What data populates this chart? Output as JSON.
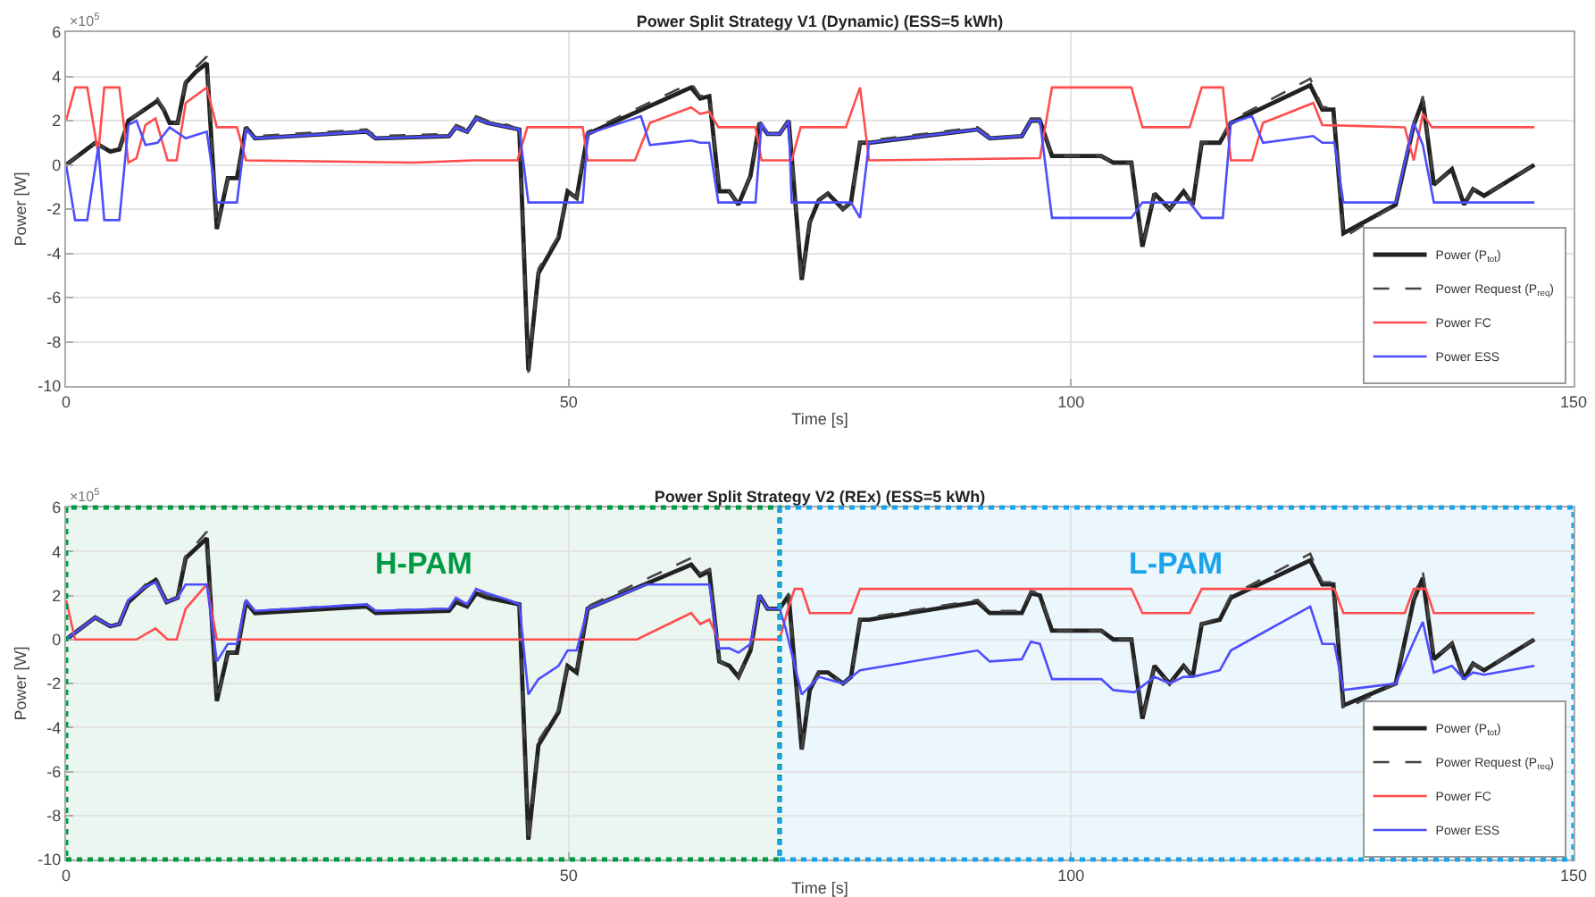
{
  "chart_data": [
    {
      "type": "line",
      "title": "Power Split Strategy V1 (Dynamic) (ESS=5 kWh)",
      "xlabel": "Time [s]",
      "ylabel": "Power [W]",
      "annotations": [
        "×10$^{5}$"
      ],
      "xlim": [
        0,
        150
      ],
      "xticks": [
        0,
        50,
        100,
        150
      ],
      "ylim": [
        -10,
        6
      ],
      "yticks": [
        -10,
        -8,
        -6,
        -4,
        -2,
        0,
        2,
        4,
        6
      ],
      "grid": true,
      "legend": "bottom right",
      "series": [
        {
          "name": "Power (P$_{tot}$)",
          "color": "#222222",
          "line_style": "solid",
          "x": [
            0,
            2.9,
            4.4,
            5.3,
            6.2,
            9.1,
            9.7,
            10.3,
            11.1,
            11.9,
            12.9,
            14.0,
            15.0,
            16.1,
            17.0,
            17.9,
            18.8,
            29.9,
            30.8,
            38.1,
            38.8,
            39.9,
            40.8,
            41.9,
            44.0,
            45.1,
            46.0,
            47.0,
            49.0,
            49.9,
            50.8,
            51.9,
            62.2,
            63.1,
            64.0,
            65.0,
            66.0,
            66.9,
            68.1,
            69.0,
            69.8,
            71.0,
            71.9,
            73.2,
            74.0,
            74.9,
            75.8,
            77.3,
            78.1,
            79.0,
            79.9,
            90.7,
            91.9,
            95.1,
            96.0,
            96.9,
            98.1,
            103.0,
            104.2,
            106.0,
            107.1,
            108.3,
            109.8,
            111.2,
            112.1,
            113.0,
            114.8,
            115.9,
            123.8,
            125.0,
            126.1,
            127.1,
            132.3,
            134.1,
            135.0,
            136.1,
            137.9,
            139.1,
            140.0,
            141.1,
            146.1
          ],
          "values": [
            0,
            1.0,
            0.6,
            0.7,
            2.0,
            2.9,
            2.5,
            1.9,
            1.9,
            3.7,
            4.2,
            4.6,
            -2.9,
            -0.6,
            -0.6,
            1.7,
            1.2,
            1.5,
            1.2,
            1.3,
            1.7,
            1.5,
            2.1,
            1.9,
            1.7,
            1.6,
            -9.3,
            -4.9,
            -3.3,
            -1.2,
            -1.5,
            1.4,
            3.5,
            3.0,
            3.1,
            -1.2,
            -1.2,
            -1.8,
            -0.5,
            1.9,
            1.4,
            1.4,
            2.0,
            -5.2,
            -2.6,
            -1.6,
            -1.3,
            -2.0,
            -1.7,
            1.0,
            1.0,
            1.6,
            1.2,
            1.3,
            2.0,
            2.0,
            0.4,
            0.4,
            0.1,
            0.1,
            -3.7,
            -1.3,
            -2.0,
            -1.2,
            -1.8,
            1.0,
            1.0,
            1.9,
            3.6,
            2.5,
            2.5,
            -3.1,
            -1.8,
            1.8,
            2.9,
            -0.9,
            -0.2,
            -1.8,
            -1.1,
            -1.4,
            0.0
          ]
        },
        {
          "name": "Power Request (P$_{req}$)",
          "color": "#444444",
          "line_style": "dashed",
          "x": [
            0,
            2.9,
            4.4,
            5.3,
            6.2,
            9.1,
            9.7,
            10.3,
            11.1,
            11.9,
            12.9,
            14.0,
            15.0,
            16.1,
            17.0,
            17.9,
            18.8,
            29.9,
            30.8,
            38.1,
            38.8,
            39.9,
            40.8,
            41.9,
            44.0,
            45.1,
            46.0,
            47.0,
            49.0,
            49.9,
            50.8,
            51.9,
            62.2,
            63.1,
            64.0,
            65.0,
            66.0,
            66.9,
            68.1,
            69.0,
            69.8,
            71.0,
            71.9,
            73.2,
            74.0,
            74.9,
            75.8,
            77.3,
            78.1,
            79.0,
            79.9,
            90.7,
            91.9,
            95.1,
            96.0,
            96.9,
            98.1,
            103.0,
            104.2,
            106.0,
            107.1,
            108.3,
            109.8,
            111.2,
            112.1,
            113.0,
            114.8,
            115.9,
            123.8,
            125.0,
            126.1,
            127.1,
            132.3,
            134.1,
            135.0,
            136.1,
            137.9,
            139.1,
            140.0,
            141.1,
            146.1
          ],
          "values": [
            0,
            1.0,
            0.6,
            0.7,
            2.0,
            3.0,
            2.5,
            1.9,
            1.9,
            3.8,
            4.4,
            4.9,
            -2.9,
            -0.6,
            -0.6,
            1.7,
            1.3,
            1.6,
            1.3,
            1.4,
            1.8,
            1.6,
            2.2,
            2.0,
            1.8,
            1.6,
            -9.4,
            -4.7,
            -3.2,
            -1.2,
            -1.5,
            1.5,
            3.7,
            3.1,
            3.2,
            -1.2,
            -1.2,
            -1.8,
            -0.5,
            1.9,
            1.4,
            1.4,
            2.1,
            -5.2,
            -2.6,
            -1.6,
            -1.3,
            -2.0,
            -1.7,
            1.0,
            1.1,
            1.7,
            1.3,
            1.3,
            2.1,
            2.1,
            0.4,
            0.4,
            0.1,
            0.1,
            -3.7,
            -1.3,
            -2.0,
            -1.2,
            -1.8,
            1.0,
            1.1,
            2.0,
            3.9,
            2.6,
            2.6,
            -3.3,
            -1.8,
            1.9,
            3.1,
            -0.9,
            -0.2,
            -1.8,
            -1.1,
            -1.4,
            0.0
          ]
        },
        {
          "name": "Power FC",
          "color": "#ff4d4d",
          "line_style": "solid",
          "x": [
            0,
            0.9,
            2.1,
            3.2,
            3.8,
            5.3,
            6.2,
            7.0,
            7.9,
            8.9,
            10.1,
            11.0,
            11.9,
            14.0,
            15.0,
            17.0,
            17.9,
            34.6,
            40.5,
            44.9,
            45.9,
            51.4,
            51.9,
            56.6,
            58.1,
            62.2,
            63.1,
            64.0,
            64.9,
            68.6,
            69.2,
            72.2,
            73.1,
            77.6,
            79.0,
            79.9,
            96.9,
            98.1,
            106.0,
            107.1,
            111.8,
            113.0,
            115.1,
            115.9,
            118.0,
            119.1,
            124.1,
            125.0,
            133.2,
            134.1,
            135.0,
            135.9,
            146.1
          ],
          "values": [
            2.0,
            3.5,
            3.5,
            0.5,
            3.5,
            3.5,
            0.1,
            0.3,
            1.8,
            2.1,
            0.2,
            0.2,
            2.8,
            3.5,
            1.7,
            1.7,
            0.2,
            0.1,
            0.2,
            0.2,
            1.7,
            1.7,
            0.2,
            0.2,
            1.9,
            2.6,
            2.3,
            2.4,
            1.7,
            1.7,
            0.2,
            0.2,
            1.7,
            1.7,
            3.5,
            0.2,
            0.3,
            3.5,
            3.5,
            1.7,
            1.7,
            3.5,
            3.5,
            0.2,
            0.2,
            1.9,
            2.8,
            1.8,
            1.7,
            0.2,
            2.3,
            1.7,
            1.7
          ]
        },
        {
          "name": "Power ESS",
          "color": "#4d4dff",
          "line_style": "solid",
          "x": [
            0,
            0.9,
            2.1,
            3.2,
            3.8,
            5.3,
            6.2,
            7.0,
            7.9,
            9.1,
            10.3,
            11.9,
            14.0,
            15.0,
            17.0,
            17.9,
            18.8,
            29.9,
            30.8,
            38.1,
            38.8,
            39.9,
            40.8,
            41.9,
            44.0,
            45.1,
            46.0,
            51.4,
            51.9,
            57.2,
            58.1,
            62.2,
            63.1,
            64.0,
            64.9,
            68.6,
            69.2,
            69.8,
            71.0,
            71.9,
            72.2,
            78.1,
            79.0,
            79.9,
            90.7,
            91.9,
            95.1,
            96.0,
            96.9,
            98.1,
            106.0,
            107.1,
            111.8,
            113.0,
            115.1,
            115.9,
            118.0,
            119.1,
            124.1,
            125.0,
            126.2,
            127.1,
            132.3,
            134.1,
            135.0,
            136.1,
            146.1
          ],
          "values": [
            0,
            -2.5,
            -2.5,
            0.8,
            -2.5,
            -2.5,
            1.8,
            2.0,
            0.9,
            1.0,
            1.7,
            1.2,
            1.5,
            -1.7,
            -1.7,
            1.6,
            1.2,
            1.5,
            1.2,
            1.3,
            1.7,
            1.5,
            2.1,
            1.9,
            1.7,
            1.6,
            -1.7,
            -1.7,
            1.4,
            2.2,
            0.9,
            1.1,
            1.0,
            1.0,
            -1.7,
            -1.7,
            1.9,
            1.4,
            1.4,
            2.0,
            -1.7,
            -1.7,
            -2.4,
            1.0,
            1.6,
            1.2,
            1.3,
            2.0,
            2.0,
            -2.4,
            -2.4,
            -1.7,
            -1.7,
            -2.4,
            -2.4,
            1.9,
            2.2,
            1.0,
            1.3,
            1.0,
            1.0,
            -1.7,
            -1.7,
            1.9,
            0.9,
            -1.7,
            -1.7
          ]
        }
      ]
    },
    {
      "type": "line",
      "title": "Power Split Strategy V2 (REx) (ESS=5 kWh)",
      "xlabel": "Time [s]",
      "ylabel": "Power [W]",
      "annotations": [
        "×10$^{5}$"
      ],
      "xlim": [
        0,
        150
      ],
      "xticks": [
        0,
        50,
        100,
        150
      ],
      "ylim": [
        -10,
        6
      ],
      "yticks": [
        -10,
        -8,
        -6,
        -4,
        -2,
        0,
        2,
        4,
        6
      ],
      "grid": true,
      "legend": "bottom right",
      "bands": [
        {
          "axis": "x",
          "from": 0,
          "to": 71,
          "label": "H-PAM",
          "color": "#009944"
        },
        {
          "axis": "x",
          "from": 71,
          "to": 150,
          "label": "L-PAM",
          "color": "#1aa3e8"
        }
      ],
      "series": [
        {
          "name": "Power (P$_{tot}$)",
          "color": "#222222",
          "line_style": "solid",
          "x": [
            0,
            2.9,
            4.4,
            5.3,
            6.2,
            7.9,
            8.9,
            10.0,
            11.1,
            11.9,
            14.0,
            15.0,
            16.1,
            17.0,
            17.9,
            18.8,
            29.9,
            30.8,
            38.1,
            38.8,
            39.9,
            40.8,
            41.9,
            44.0,
            45.1,
            46.0,
            47.0,
            49.0,
            49.9,
            50.8,
            51.9,
            62.2,
            63.1,
            64.0,
            65.0,
            66.0,
            66.9,
            68.1,
            69.0,
            69.8,
            71.0,
            71.9,
            73.2,
            74.0,
            74.9,
            75.8,
            77.3,
            78.1,
            79.0,
            79.9,
            90.7,
            91.9,
            95.1,
            96.0,
            96.9,
            98.1,
            103.0,
            104.2,
            106.0,
            107.1,
            108.3,
            109.8,
            111.2,
            112.1,
            113.0,
            114.8,
            115.9,
            123.8,
            125.0,
            126.1,
            127.1,
            132.3,
            134.1,
            135.0,
            136.1,
            137.9,
            139.1,
            140.0,
            141.1,
            146.1
          ],
          "values": [
            0,
            1.0,
            0.6,
            0.7,
            1.7,
            2.4,
            2.7,
            1.7,
            1.9,
            3.7,
            4.6,
            -2.8,
            -0.6,
            -0.6,
            1.7,
            1.2,
            1.5,
            1.2,
            1.3,
            1.7,
            1.5,
            2.1,
            1.9,
            1.7,
            1.6,
            -9.1,
            -4.8,
            -3.3,
            -1.2,
            -1.5,
            1.4,
            3.4,
            2.9,
            3.1,
            -1.0,
            -1.2,
            -1.7,
            -0.5,
            2.0,
            1.4,
            1.4,
            2.0,
            -5.0,
            -2.3,
            -1.5,
            -1.5,
            -2.0,
            -1.7,
            0.9,
            0.9,
            1.7,
            1.2,
            1.2,
            2.1,
            2.0,
            0.4,
            0.4,
            0.0,
            0.0,
            -3.6,
            -1.2,
            -2.0,
            -1.2,
            -1.7,
            0.7,
            0.9,
            1.9,
            3.6,
            2.5,
            2.5,
            -3.0,
            -2.0,
            1.8,
            2.8,
            -0.9,
            -0.2,
            -1.8,
            -1.1,
            -1.4,
            0.0
          ]
        },
        {
          "name": "Power Request (P$_{req}$)",
          "color": "#444444",
          "line_style": "dashed",
          "x": [
            0,
            2.9,
            4.4,
            5.3,
            6.2,
            7.9,
            8.9,
            10.0,
            11.1,
            11.9,
            14.0,
            15.0,
            16.1,
            17.0,
            17.9,
            18.8,
            29.9,
            30.8,
            38.1,
            38.8,
            39.9,
            40.8,
            41.9,
            44.0,
            45.1,
            46.0,
            47.0,
            49.0,
            49.9,
            50.8,
            51.9,
            62.2,
            63.1,
            64.0,
            65.0,
            66.0,
            66.9,
            68.1,
            69.0,
            69.8,
            71.0,
            71.9,
            73.2,
            74.0,
            74.9,
            75.8,
            77.3,
            78.1,
            79.0,
            79.9,
            90.7,
            91.9,
            95.1,
            96.0,
            96.9,
            98.1,
            103.0,
            104.2,
            106.0,
            107.1,
            108.3,
            109.8,
            111.2,
            112.1,
            113.0,
            114.8,
            115.9,
            123.8,
            125.0,
            126.1,
            127.1,
            132.3,
            134.1,
            135.0,
            136.1,
            137.9,
            139.1,
            140.0,
            141.1,
            146.1
          ],
          "values": [
            0,
            1.0,
            0.6,
            0.7,
            1.7,
            2.5,
            2.9,
            1.7,
            1.9,
            3.8,
            4.9,
            -2.8,
            -0.6,
            -0.6,
            1.7,
            1.3,
            1.6,
            1.3,
            1.4,
            1.8,
            1.6,
            2.2,
            2.0,
            1.8,
            1.6,
            -9.3,
            -4.6,
            -3.2,
            -1.2,
            -1.5,
            1.5,
            3.7,
            3.0,
            3.2,
            -1.0,
            -1.2,
            -1.7,
            -0.5,
            2.0,
            1.4,
            1.4,
            2.1,
            -5.0,
            -2.3,
            -1.5,
            -1.5,
            -2.0,
            -1.7,
            0.9,
            1.0,
            1.8,
            1.3,
            1.3,
            2.2,
            2.1,
            0.4,
            0.4,
            0.0,
            0.0,
            -3.6,
            -1.2,
            -2.0,
            -1.2,
            -1.7,
            0.7,
            1.0,
            2.0,
            3.9,
            2.6,
            2.6,
            -3.2,
            -2.0,
            1.9,
            3.1,
            -0.9,
            -0.2,
            -1.8,
            -1.1,
            -1.4,
            0.0
          ]
        },
        {
          "name": "Power FC",
          "color": "#ff4d4d",
          "line_style": "solid",
          "x": [
            0,
            0.9,
            7.0,
            8.9,
            10.1,
            11.0,
            11.9,
            14.0,
            15.0,
            56.8,
            62.2,
            63.1,
            64.0,
            64.9,
            71.0,
            71.9,
            72.5,
            73.2,
            74.0,
            78.1,
            79.0,
            106.0,
            107.1,
            111.8,
            113.0,
            126.2,
            127.1,
            133.2,
            134.1,
            135.3,
            136.1,
            146.1
          ],
          "values": [
            1.8,
            0,
            0,
            0.5,
            0,
            0,
            1.4,
            2.5,
            0,
            0,
            1.2,
            0.7,
            0.9,
            0,
            0,
            1.5,
            2.3,
            2.3,
            1.2,
            1.2,
            2.3,
            2.3,
            1.2,
            1.2,
            2.3,
            2.3,
            1.2,
            1.2,
            2.3,
            2.3,
            1.2,
            1.2
          ]
        },
        {
          "name": "Power ESS",
          "color": "#4d4dff",
          "line_style": "solid",
          "x": [
            0,
            2.9,
            4.4,
            5.3,
            6.2,
            7.9,
            8.9,
            10.0,
            11.1,
            11.9,
            14.0,
            15.0,
            16.1,
            17.0,
            17.9,
            18.8,
            29.9,
            30.8,
            38.1,
            38.8,
            39.9,
            40.8,
            41.9,
            44.0,
            45.1,
            46.0,
            47.0,
            49.0,
            49.9,
            50.8,
            51.9,
            57.7,
            64.0,
            64.9,
            66.0,
            66.9,
            68.1,
            69.0,
            69.8,
            71.0,
            71.6,
            73.2,
            74.9,
            77.3,
            79.0,
            90.7,
            91.9,
            95.1,
            96.0,
            96.9,
            98.1,
            103.0,
            104.2,
            106.3,
            108.3,
            109.8,
            111.2,
            112.1,
            114.8,
            115.9,
            123.8,
            125.0,
            126.2,
            127.1,
            132.3,
            134.1,
            135.0,
            136.1,
            137.9,
            139.1,
            140.0,
            141.1,
            146.1
          ],
          "values": [
            0,
            1.0,
            0.6,
            0.7,
            1.8,
            2.4,
            2.6,
            1.7,
            1.9,
            2.5,
            2.5,
            -1.0,
            -0.2,
            -0.2,
            1.8,
            1.3,
            1.6,
            1.3,
            1.4,
            1.9,
            1.6,
            2.3,
            2.1,
            1.8,
            1.6,
            -2.5,
            -1.8,
            -1.2,
            -0.5,
            -0.5,
            1.4,
            2.5,
            2.5,
            -0.4,
            -0.4,
            -0.6,
            -0.2,
            2.0,
            1.4,
            1.4,
            0.5,
            -2.5,
            -1.7,
            -2.0,
            -1.4,
            -0.5,
            -1.0,
            -0.9,
            -0.1,
            -0.2,
            -1.8,
            -1.8,
            -2.3,
            -2.4,
            -1.7,
            -2.0,
            -1.7,
            -1.7,
            -1.4,
            -0.5,
            1.5,
            -0.2,
            -0.2,
            -2.3,
            -2.0,
            -0.1,
            0.8,
            -1.5,
            -1.2,
            -1.8,
            -1.5,
            -1.6,
            -1.2
          ]
        }
      ]
    }
  ]
}
